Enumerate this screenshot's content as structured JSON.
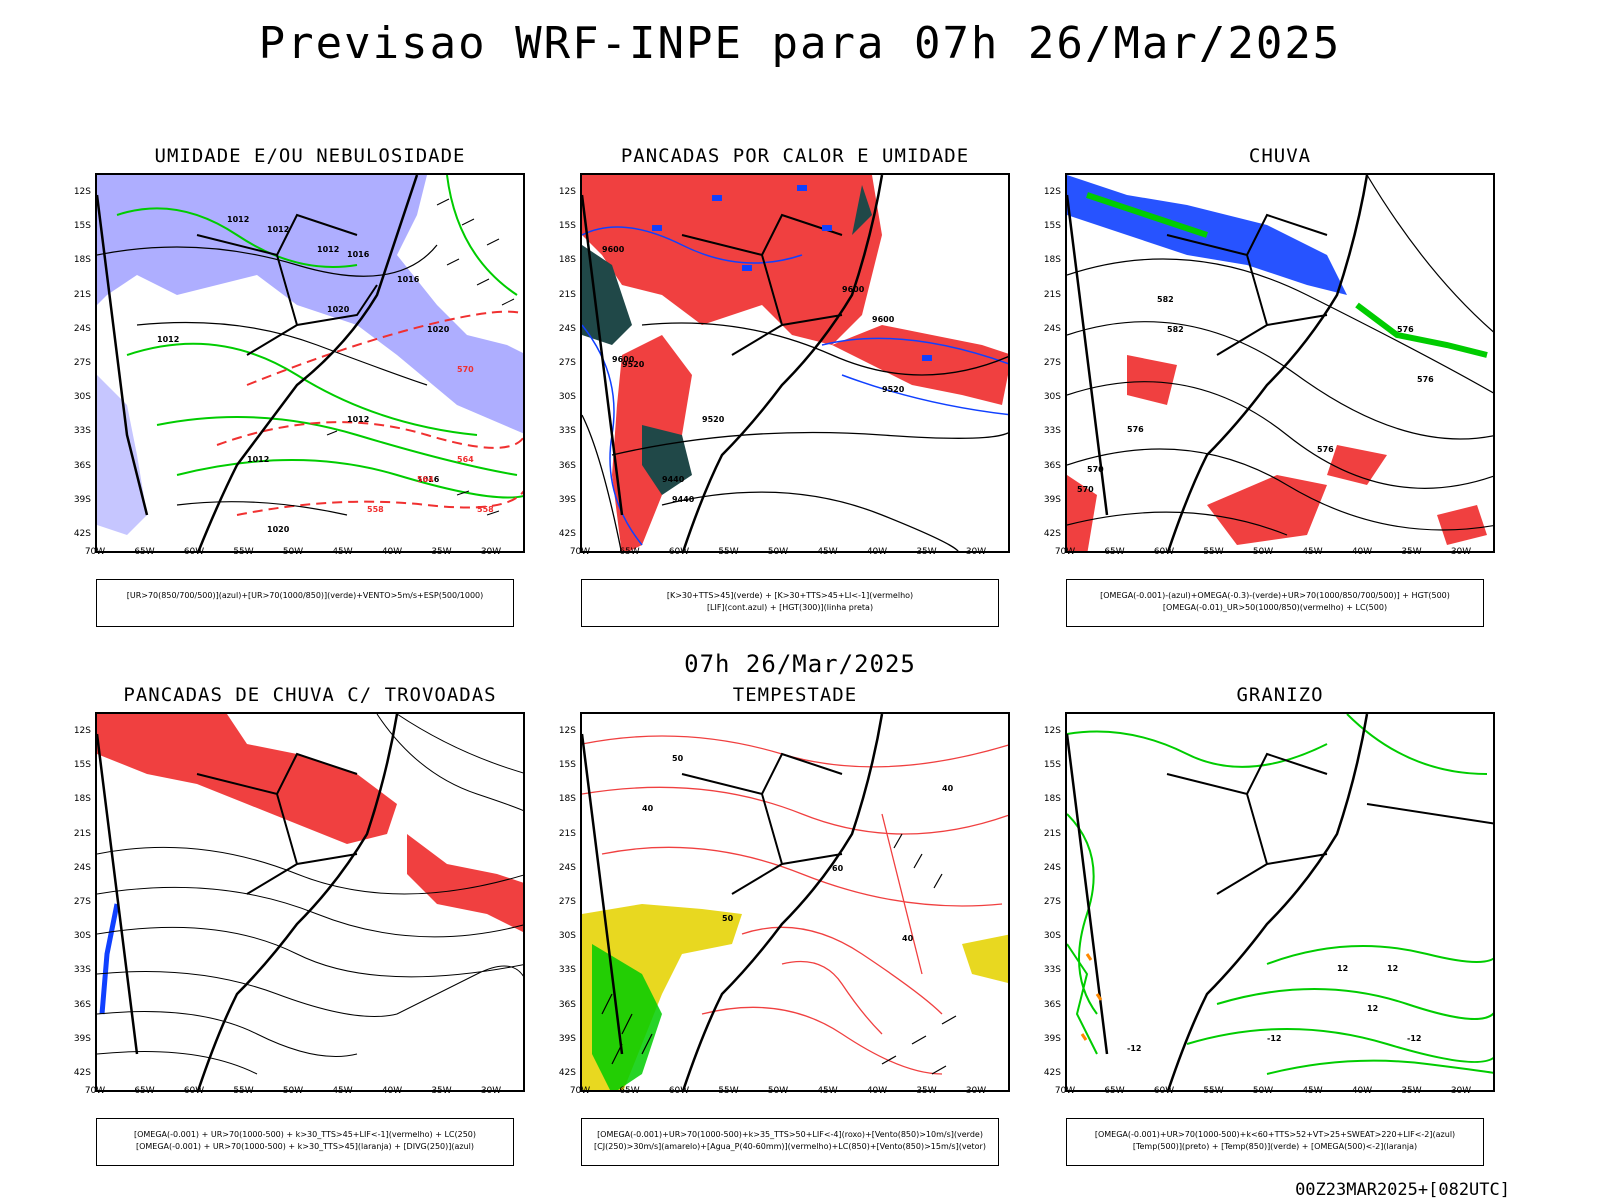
{
  "main_title": "Previsao WRF-INPE  para 07h 26/Mar/2025",
  "middle_title": "07h 26/Mar/2025",
  "footer": "00Z23MAR2025+[082UTC]",
  "lat_labels": [
    "12S",
    "15S",
    "18S",
    "21S",
    "24S",
    "27S",
    "30S",
    "33S",
    "36S",
    "39S",
    "42S"
  ],
  "lon_labels": [
    "70W",
    "65W",
    "60W",
    "55W",
    "50W",
    "45W",
    "40W",
    "35W",
    "30W"
  ],
  "colors": {
    "blue_fill": "#a0a0ff",
    "red_fill": "#f04040",
    "dark_teal": "#204848",
    "yellow": "#e8d820",
    "green": "#00cc00",
    "blue": "#1040ff"
  },
  "panels": [
    {
      "id": "umidade",
      "title": "UMIDADE E/OU NEBULOSIDADE",
      "legend": [
        "[UR>70(850/700/500)](azul)+[UR>70(1000/850)](verde)+VENTO>5m/s+ESP(500/1000)"
      ],
      "contour_labels": [
        "1012",
        "1012",
        "1012",
        "1012",
        "1020",
        "1012",
        "1020",
        "1016",
        "1012",
        "1016",
        "1020",
        "1016",
        "570",
        "564",
        "564",
        "558",
        "558"
      ]
    },
    {
      "id": "pancadas-calor",
      "title": "PANCADAS POR CALOR E UMIDADE",
      "legend": [
        "[K>30+TTS>45](verde) + [K>30+TTS>45+LI<-1](vermelho)",
        "[LIF](cont.azul) + [HGT(300)](linha preta)"
      ],
      "contour_labels": [
        "9600",
        "9600",
        "9600",
        "9520",
        "9440",
        "9520",
        "9600",
        "9520",
        "9440"
      ]
    },
    {
      "id": "chuva",
      "title": "CHUVA",
      "legend": [
        "[OMEGA(-0.001)-(azul)+OMEGA(-0.3)-(verde)+UR>70(1000/850/700/500)] + HGT(500)",
        "[OMEGA(-0.01)_UR>50(1000/850)(vermelho) + LC(500)"
      ],
      "contour_labels": [
        "582",
        "582",
        "576",
        "576",
        "576",
        "576",
        "570",
        "570"
      ]
    },
    {
      "id": "pancadas-trovoadas",
      "title": "PANCADAS DE CHUVA C/ TROVOADAS",
      "legend": [
        "[OMEGA(-0.001) + UR>70(1000-500) + k>30_TTS>45+LIF<-1](vermelho) + LC(250)",
        "[OMEGA(-0.001) + UR>70(1000-500) + k>30_TTS>45](laranja) + [DIVG(250)](azul)"
      ],
      "contour_labels": []
    },
    {
      "id": "tempestade",
      "title": "TEMPESTADE",
      "legend": [
        "[OMEGA(-0.001)+UR>70(1000-500)+k>35_TTS>50+LIF<-4](roxo)+[Vento(850)>10m/s](verde)",
        "[CJ(250)>30m/s](amarelo)+[Agua_P(40-60mm)](vermelho)+LC(850)+[Vento(850)>15m/s](vetor)"
      ],
      "contour_labels": [
        "50",
        "40",
        "60",
        "40",
        "40",
        "50"
      ]
    },
    {
      "id": "granizo",
      "title": "GRANIZO",
      "legend": [
        "[OMEGA(-0.001)+UR>70(1000-500)+k<60+TTS>52+VT>25+SWEAT>220+LIF<-2](azul)",
        "[Temp(500)](preto) + [Temp(850)](verde) + [OMEGA(500)<-2](laranja)"
      ],
      "contour_labels": [
        "-12",
        "-12",
        "-12",
        "12",
        "12",
        "12"
      ]
    }
  ]
}
